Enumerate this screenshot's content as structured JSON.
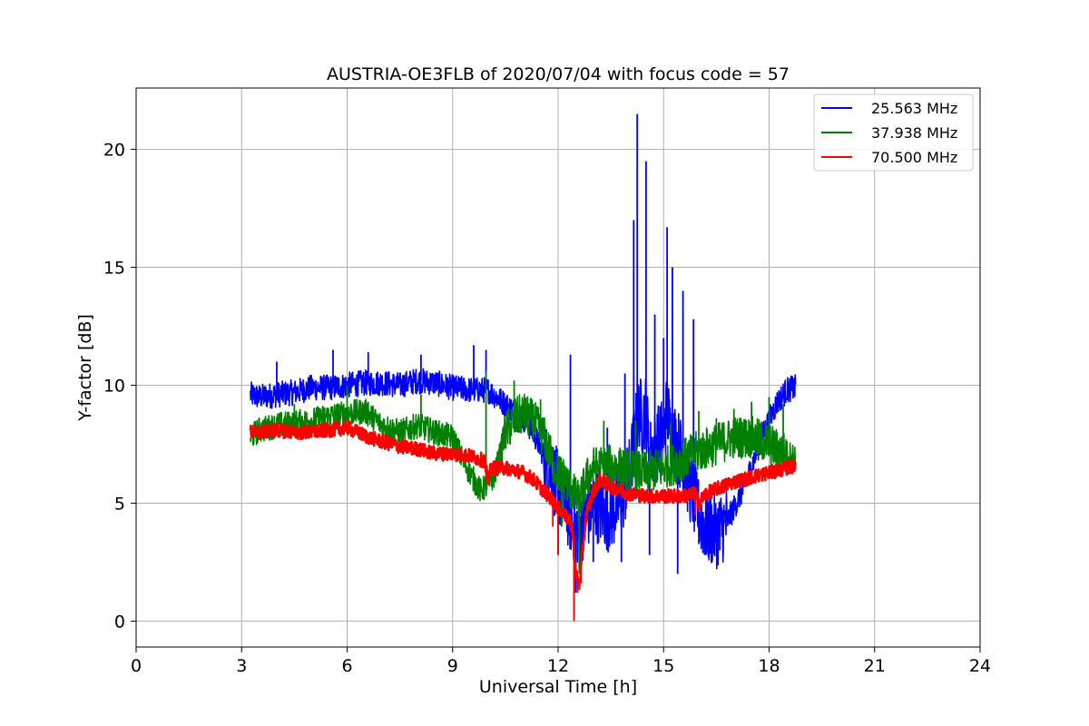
{
  "chart_data": {
    "type": "line",
    "title": "AUSTRIA-OE3FLB of 2020/07/04 with focus code = 57",
    "xlabel": "Universal Time [h]",
    "ylabel": "Y-factor [dB]",
    "xlim": [
      0,
      24
    ],
    "ylim": [
      -1.1,
      22.6
    ],
    "xticks": [
      0,
      3,
      6,
      9,
      12,
      15,
      18,
      21,
      24
    ],
    "xtick_labels": [
      "0",
      "3",
      "6",
      "9",
      "12",
      "15",
      "18",
      "21",
      "24"
    ],
    "yticks": [
      0,
      5,
      10,
      15,
      20
    ],
    "ytick_labels": [
      "0",
      "5",
      "10",
      "15",
      "20"
    ],
    "grid": true,
    "legend_position": "top-right",
    "series": [
      {
        "name": "25.563 MHz",
        "color": "#0000ff",
        "x": [
          3.25,
          3.5,
          4.0,
          4.5,
          5.0,
          5.5,
          6.0,
          6.5,
          7.0,
          7.5,
          8.0,
          8.5,
          9.0,
          9.5,
          10.0,
          10.5,
          11.0,
          11.3,
          11.6,
          11.9,
          12.2,
          12.4,
          12.6,
          12.8,
          13.0,
          13.2,
          13.4,
          13.6,
          13.8,
          14.0,
          14.2,
          14.3,
          14.4,
          14.5,
          14.6,
          14.8,
          15.0,
          15.1,
          15.2,
          15.4,
          15.6,
          15.8,
          16.0,
          16.2,
          16.5,
          16.8,
          17.0,
          17.3,
          17.6,
          17.9,
          18.2,
          18.5,
          18.75
        ],
        "y": [
          9.6,
          9.5,
          9.6,
          9.7,
          9.9,
          9.9,
          10.0,
          10.1,
          10.1,
          10.0,
          10.2,
          10.1,
          9.9,
          9.8,
          9.8,
          9.2,
          8.6,
          8.0,
          7.0,
          6.0,
          5.0,
          4.2,
          3.8,
          4.5,
          5.0,
          4.8,
          4.5,
          4.7,
          5.2,
          6.0,
          8.0,
          9.0,
          8.5,
          9.0,
          7.0,
          7.5,
          8.0,
          9.0,
          8.0,
          7.5,
          6.5,
          5.5,
          4.5,
          4.0,
          3.8,
          4.2,
          4.8,
          5.7,
          7.0,
          8.2,
          9.2,
          9.8,
          9.9
        ],
        "spikes": [
          [
            4.0,
            11.0
          ],
          [
            5.6,
            11.5
          ],
          [
            6.6,
            11.4
          ],
          [
            8.1,
            11.3
          ],
          [
            9.6,
            11.7
          ],
          [
            9.95,
            11.5
          ],
          [
            12.35,
            11.3
          ],
          [
            13.4,
            8.2
          ],
          [
            13.9,
            10.5
          ],
          [
            14.15,
            17.0
          ],
          [
            14.25,
            21.5
          ],
          [
            14.5,
            19.5
          ],
          [
            14.75,
            13.0
          ],
          [
            15.0,
            12.0
          ],
          [
            15.1,
            16.7
          ],
          [
            15.25,
            15.0
          ],
          [
            15.55,
            14.0
          ],
          [
            15.85,
            12.8
          ],
          [
            12.5,
            1.2
          ],
          [
            12.0,
            2.8
          ],
          [
            13.0,
            2.5
          ],
          [
            13.8,
            2.5
          ],
          [
            14.6,
            2.8
          ],
          [
            15.4,
            2.0
          ],
          [
            16.2,
            2.8
          ],
          [
            16.6,
            3.0
          ]
        ]
      },
      {
        "name": "37.938 MHz",
        "color": "#008000",
        "x": [
          3.25,
          3.5,
          4.0,
          4.5,
          5.0,
          5.5,
          6.0,
          6.5,
          7.0,
          7.5,
          8.0,
          8.5,
          9.0,
          9.3,
          9.6,
          9.8,
          10.0,
          10.2,
          10.5,
          10.8,
          11.0,
          11.3,
          11.6,
          11.9,
          12.2,
          12.4,
          12.6,
          12.8,
          13.0,
          13.5,
          14.0,
          14.5,
          15.0,
          15.5,
          16.0,
          16.5,
          17.0,
          17.5,
          18.0,
          18.3,
          18.75
        ],
        "y": [
          7.8,
          8.1,
          8.3,
          8.4,
          8.5,
          8.7,
          8.8,
          8.9,
          8.3,
          8.0,
          8.3,
          8.0,
          7.8,
          6.8,
          6.0,
          5.5,
          5.8,
          6.2,
          8.0,
          8.6,
          8.8,
          8.5,
          7.8,
          6.5,
          6.0,
          5.5,
          5.0,
          6.0,
          6.5,
          6.6,
          6.4,
          6.3,
          6.5,
          6.8,
          7.2,
          7.5,
          7.8,
          7.8,
          7.5,
          7.2,
          7.0
        ],
        "spikes": [
          [
            4.5,
            9.2
          ],
          [
            6.0,
            10.0
          ],
          [
            6.6,
            9.3
          ],
          [
            8.1,
            9.6
          ],
          [
            9.95,
            10.6
          ],
          [
            10.75,
            10.2
          ],
          [
            11.5,
            9.4
          ],
          [
            12.6,
            2.0
          ],
          [
            12.1,
            4.0
          ],
          [
            13.3,
            8.5
          ],
          [
            14.2,
            8.5
          ],
          [
            15.2,
            8.4
          ],
          [
            16.0,
            8.9
          ],
          [
            16.5,
            8.6
          ],
          [
            17.0,
            9.0
          ],
          [
            17.5,
            9.3
          ],
          [
            18.0,
            9.5
          ],
          [
            18.4,
            9.2
          ]
        ]
      },
      {
        "name": "70.500 MHz",
        "color": "#ff0000",
        "x": [
          3.25,
          3.5,
          4.0,
          4.5,
          5.0,
          5.5,
          6.0,
          6.3,
          6.6,
          7.0,
          7.5,
          8.0,
          8.5,
          9.0,
          9.5,
          9.9,
          10.0,
          10.1,
          10.5,
          11.0,
          11.3,
          11.6,
          11.8,
          12.0,
          12.2,
          12.4,
          12.5,
          12.6,
          12.8,
          13.0,
          13.2,
          13.5,
          14.0,
          14.5,
          15.0,
          15.5,
          15.9,
          16.0,
          16.2,
          16.5,
          17.0,
          17.5,
          18.0,
          18.3,
          18.75
        ],
        "y": [
          8.0,
          8.0,
          8.1,
          8.0,
          8.0,
          8.1,
          8.2,
          8.0,
          7.8,
          7.6,
          7.4,
          7.3,
          7.1,
          7.1,
          7.0,
          6.8,
          6.0,
          6.5,
          6.5,
          6.3,
          6.0,
          5.5,
          5.2,
          4.8,
          4.5,
          4.0,
          2.0,
          1.5,
          4.5,
          5.5,
          6.0,
          5.7,
          5.4,
          5.3,
          5.3,
          5.3,
          5.4,
          5.0,
          5.4,
          5.6,
          5.9,
          6.1,
          6.3,
          6.4,
          6.6
        ],
        "spikes": [
          [
            11.85,
            4.0
          ],
          [
            12.0,
            2.8
          ],
          [
            12.45,
            0.0
          ],
          [
            12.55,
            1.2
          ],
          [
            12.65,
            1.6
          ],
          [
            9.95,
            6.0
          ],
          [
            15.9,
            4.5
          ]
        ]
      }
    ]
  }
}
